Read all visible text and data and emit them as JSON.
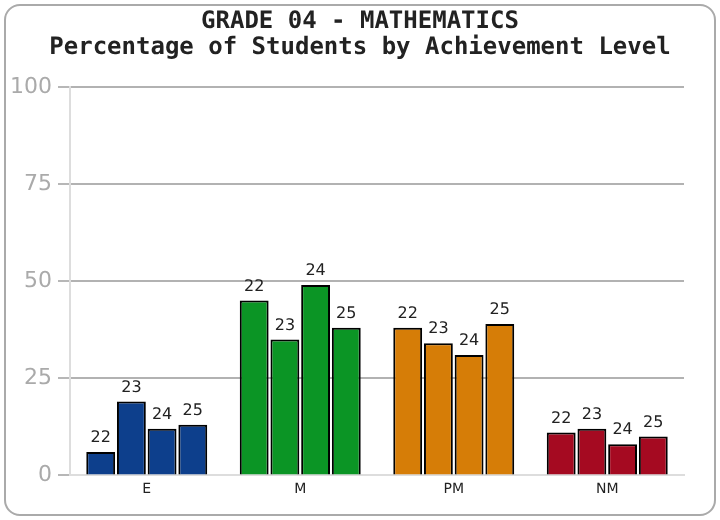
{
  "chart_data": {
    "type": "bar",
    "title": "GRADE 04 - MATHEMATICS",
    "subtitle": "Percentage of Students by Achievement Level",
    "categories": [
      "E",
      "M",
      "PM",
      "NM"
    ],
    "series": [
      {
        "name": "22",
        "colors": [
          "#0d3f8c",
          "#0b9525",
          "#d67d07",
          "#a50a21"
        ],
        "values": [
          6,
          45,
          38,
          11
        ]
      },
      {
        "name": "23",
        "colors": [
          "#0d3f8c",
          "#0b9525",
          "#d67d07",
          "#a50a21"
        ],
        "values": [
          19,
          35,
          34,
          12
        ]
      },
      {
        "name": "24",
        "colors": [
          "#0d3f8c",
          "#0b9525",
          "#d67d07",
          "#a50a21"
        ],
        "values": [
          12,
          49,
          31,
          8
        ]
      },
      {
        "name": "25",
        "colors": [
          "#0d3f8c",
          "#0b9525",
          "#d67d07",
          "#a50a21"
        ],
        "values": [
          13,
          38,
          39,
          10
        ]
      }
    ],
    "ylim": [
      0,
      100
    ],
    "yticks": [
      0,
      25,
      50,
      75,
      100
    ],
    "grid": "y",
    "legend": false
  }
}
